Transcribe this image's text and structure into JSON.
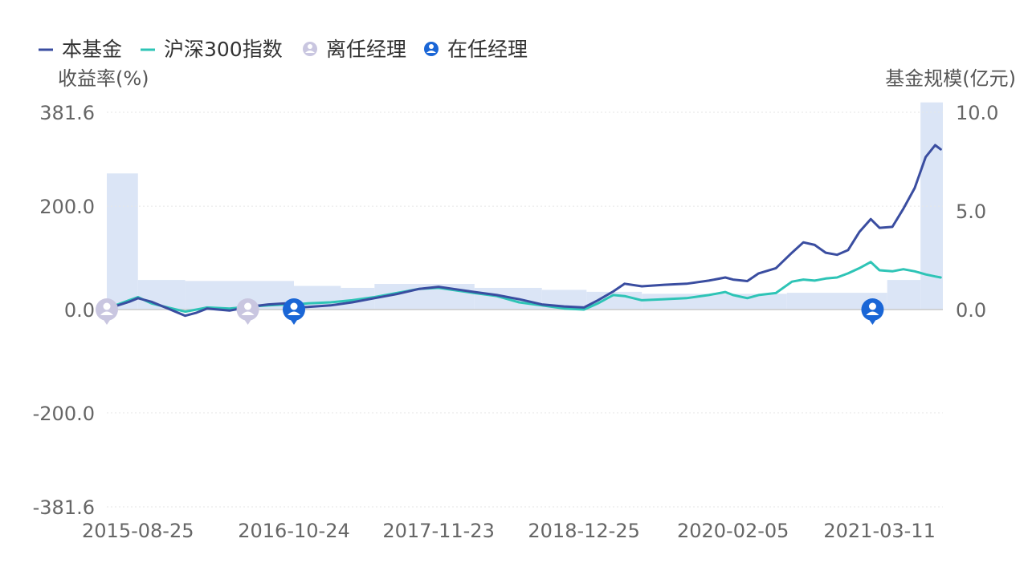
{
  "chart_data": {
    "type": "line",
    "legend": {
      "placement": "top-left",
      "items": [
        {
          "label": "本基金",
          "color": "#3a4da0",
          "marker": "line"
        },
        {
          "label": "沪深300指数",
          "color": "#2ec4b6",
          "marker": "line"
        },
        {
          "label": "离任经理",
          "color": "#c9c6e0",
          "marker": "manager-icon"
        },
        {
          "label": "在任经理",
          "color": "#1a66d6",
          "marker": "manager-icon"
        }
      ]
    },
    "y_left": {
      "title": "收益率(%)",
      "range": [
        -381.6,
        381.6
      ],
      "ticks": [
        381.6,
        200.0,
        0.0,
        -200.0,
        -381.6
      ],
      "tick_labels": [
        "381.6",
        "200.0",
        "0.0",
        "-200.0",
        "-381.6"
      ]
    },
    "y_right": {
      "title": "基金规模(亿元)",
      "range": [
        0,
        10.0
      ],
      "ticks": [
        10.0,
        5.0,
        0.0
      ],
      "tick_labels": [
        "10.0",
        "5.0",
        "0.0"
      ]
    },
    "x_axis": {
      "range": [
        "2015-06-01",
        "2021-08-31"
      ],
      "ticks": [
        "2015-08-25",
        "2016-10-24",
        "2017-11-23",
        "2018-12-25",
        "2020-02-05",
        "2021-03-11"
      ]
    },
    "grid": true,
    "series": [
      {
        "name": "本基金",
        "color": "#3a4da0",
        "axis": "left",
        "points": [
          [
            "2015-06-01",
            0
          ],
          [
            "2015-07-01",
            8
          ],
          [
            "2015-08-01",
            15
          ],
          [
            "2015-08-25",
            22
          ],
          [
            "2015-10-01",
            15
          ],
          [
            "2015-11-15",
            2
          ],
          [
            "2016-01-01",
            -12
          ],
          [
            "2016-02-01",
            -6
          ],
          [
            "2016-03-01",
            2
          ],
          [
            "2016-05-01",
            -2
          ],
          [
            "2016-07-01",
            6
          ],
          [
            "2016-08-15",
            10
          ],
          [
            "2016-10-01",
            12
          ],
          [
            "2016-10-24",
            4
          ],
          [
            "2016-12-01",
            5
          ],
          [
            "2017-02-01",
            8
          ],
          [
            "2017-04-01",
            14
          ],
          [
            "2017-06-01",
            22
          ],
          [
            "2017-08-01",
            30
          ],
          [
            "2017-10-01",
            40
          ],
          [
            "2017-11-23",
            44
          ],
          [
            "2018-01-01",
            40
          ],
          [
            "2018-03-01",
            34
          ],
          [
            "2018-05-01",
            28
          ],
          [
            "2018-07-01",
            20
          ],
          [
            "2018-09-01",
            10
          ],
          [
            "2018-11-01",
            6
          ],
          [
            "2018-12-25",
            4
          ],
          [
            "2019-02-01",
            18
          ],
          [
            "2019-03-15",
            35
          ],
          [
            "2019-04-15",
            50
          ],
          [
            "2019-06-01",
            45
          ],
          [
            "2019-08-01",
            48
          ],
          [
            "2019-10-01",
            50
          ],
          [
            "2019-12-01",
            56
          ],
          [
            "2020-01-15",
            62
          ],
          [
            "2020-02-05",
            58
          ],
          [
            "2020-03-15",
            55
          ],
          [
            "2020-04-15",
            70
          ],
          [
            "2020-06-01",
            80
          ],
          [
            "2020-07-15",
            110
          ],
          [
            "2020-08-15",
            130
          ],
          [
            "2020-09-15",
            125
          ],
          [
            "2020-10-15",
            110
          ],
          [
            "2020-11-15",
            106
          ],
          [
            "2020-12-15",
            115
          ],
          [
            "2021-01-15",
            150
          ],
          [
            "2021-02-15",
            175
          ],
          [
            "2021-03-11",
            158
          ],
          [
            "2021-04-15",
            160
          ],
          [
            "2021-05-15",
            195
          ],
          [
            "2021-06-15",
            235
          ],
          [
            "2021-07-15",
            295
          ],
          [
            "2021-08-10",
            318
          ],
          [
            "2021-08-25",
            310
          ]
        ]
      },
      {
        "name": "沪深300指数",
        "color": "#2ec4b6",
        "axis": "left",
        "points": [
          [
            "2015-06-01",
            2
          ],
          [
            "2015-07-01",
            10
          ],
          [
            "2015-08-01",
            18
          ],
          [
            "2015-08-25",
            24
          ],
          [
            "2015-10-01",
            12
          ],
          [
            "2015-11-15",
            4
          ],
          [
            "2016-01-01",
            -4
          ],
          [
            "2016-02-01",
            0
          ],
          [
            "2016-03-01",
            4
          ],
          [
            "2016-05-01",
            2
          ],
          [
            "2016-07-01",
            6
          ],
          [
            "2016-08-15",
            8
          ],
          [
            "2016-10-01",
            10
          ],
          [
            "2016-10-24",
            10
          ],
          [
            "2016-12-01",
            12
          ],
          [
            "2017-02-01",
            14
          ],
          [
            "2017-04-01",
            18
          ],
          [
            "2017-06-01",
            24
          ],
          [
            "2017-08-01",
            32
          ],
          [
            "2017-10-01",
            40
          ],
          [
            "2017-11-23",
            42
          ],
          [
            "2018-01-01",
            38
          ],
          [
            "2018-03-01",
            32
          ],
          [
            "2018-05-01",
            26
          ],
          [
            "2018-07-01",
            14
          ],
          [
            "2018-09-01",
            8
          ],
          [
            "2018-11-01",
            2
          ],
          [
            "2018-12-25",
            0
          ],
          [
            "2019-02-01",
            12
          ],
          [
            "2019-03-15",
            28
          ],
          [
            "2019-04-15",
            26
          ],
          [
            "2019-06-01",
            18
          ],
          [
            "2019-08-01",
            20
          ],
          [
            "2019-10-01",
            22
          ],
          [
            "2019-12-01",
            28
          ],
          [
            "2020-01-15",
            34
          ],
          [
            "2020-02-05",
            28
          ],
          [
            "2020-03-15",
            22
          ],
          [
            "2020-04-15",
            28
          ],
          [
            "2020-06-01",
            32
          ],
          [
            "2020-07-15",
            54
          ],
          [
            "2020-08-15",
            58
          ],
          [
            "2020-09-15",
            56
          ],
          [
            "2020-10-15",
            60
          ],
          [
            "2020-11-15",
            62
          ],
          [
            "2020-12-15",
            70
          ],
          [
            "2021-01-15",
            80
          ],
          [
            "2021-02-15",
            92
          ],
          [
            "2021-03-11",
            76
          ],
          [
            "2021-04-15",
            74
          ],
          [
            "2021-05-15",
            78
          ],
          [
            "2021-06-15",
            74
          ],
          [
            "2021-07-15",
            68
          ],
          [
            "2021-08-10",
            64
          ],
          [
            "2021-08-25",
            62
          ]
        ]
      }
    ],
    "fund_size": {
      "name": "基金规模",
      "color": "#dbe5f6",
      "axis": "right",
      "steps": [
        {
          "start": "2015-06-01",
          "end": "2015-08-25",
          "value": 6.9
        },
        {
          "start": "2015-08-25",
          "end": "2016-01-01",
          "value": 1.5
        },
        {
          "start": "2016-01-01",
          "end": "2016-10-24",
          "value": 1.45
        },
        {
          "start": "2016-10-24",
          "end": "2017-03-01",
          "value": 1.2
        },
        {
          "start": "2017-03-01",
          "end": "2017-06-01",
          "value": 1.1
        },
        {
          "start": "2017-06-01",
          "end": "2018-03-01",
          "value": 1.3
        },
        {
          "start": "2018-03-01",
          "end": "2018-09-01",
          "value": 1.1
        },
        {
          "start": "2018-09-01",
          "end": "2019-01-01",
          "value": 1.0
        },
        {
          "start": "2019-01-01",
          "end": "2019-06-01",
          "value": 0.9
        },
        {
          "start": "2019-06-01",
          "end": "2020-07-01",
          "value": 0.8
        },
        {
          "start": "2020-07-01",
          "end": "2021-04-01",
          "value": 0.85
        },
        {
          "start": "2021-04-01",
          "end": "2021-07-01",
          "value": 1.5
        },
        {
          "start": "2021-07-01",
          "end": "2021-08-31",
          "value": 10.5
        }
      ]
    },
    "manager_markers": [
      {
        "date": "2015-06-01",
        "status": "离任经理",
        "color": "#c9c6e0"
      },
      {
        "date": "2016-06-20",
        "status": "离任经理",
        "color": "#c9c6e0"
      },
      {
        "date": "2016-10-24",
        "status": "在任经理",
        "color": "#1a66d6"
      },
      {
        "date": "2021-02-20",
        "status": "在任经理",
        "color": "#1a66d6"
      }
    ]
  }
}
